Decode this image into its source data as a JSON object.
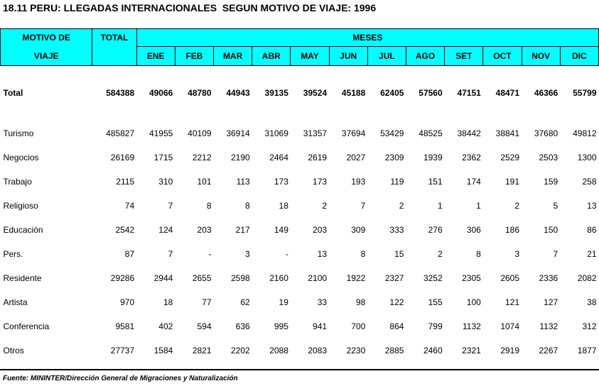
{
  "title": "18.11 PERU: LLEGADAS INTERNACIONALES  SEGUN MOTIVO DE VIAJE: 1996",
  "header": {
    "motivo_line1": "MOTIVO DE",
    "motivo_line2": "VIAJE",
    "total": "TOTAL",
    "meses": "MESES",
    "months": [
      "ENE",
      "FEB",
      "MAR",
      "ABR",
      "MAY",
      "JUN",
      "JUL",
      "AGO",
      "SET",
      "OCT",
      "NOV",
      "DIC"
    ]
  },
  "total_row": {
    "label": "Total",
    "values": [
      "584388",
      "49066",
      "48780",
      "44943",
      "39135",
      "39524",
      "45188",
      "62405",
      "57560",
      "47151",
      "48471",
      "46366",
      "55799"
    ]
  },
  "rows": [
    {
      "label": "Turismo",
      "values": [
        "485827",
        "41955",
        "40109",
        "36914",
        "31069",
        "31357",
        "37694",
        "53429",
        "48525",
        "38442",
        "38841",
        "37680",
        "49812"
      ]
    },
    {
      "label": "Negocios",
      "values": [
        "26169",
        "1715",
        "2212",
        "2190",
        "2464",
        "2619",
        "2027",
        "2309",
        "1939",
        "2362",
        "2529",
        "2503",
        "1300"
      ]
    },
    {
      "label": "Trabajo",
      "values": [
        "2115",
        "310",
        "101",
        "113",
        "173",
        "173",
        "193",
        "119",
        "151",
        "174",
        "191",
        "159",
        "258"
      ]
    },
    {
      "label": "Religioso",
      "values": [
        "74",
        "7",
        "8",
        "8",
        "18",
        "2",
        "7",
        "2",
        "1",
        "1",
        "2",
        "5",
        "13"
      ]
    },
    {
      "label": "Educación",
      "values": [
        "2542",
        "124",
        "203",
        "217",
        "149",
        "203",
        "309",
        "333",
        "276",
        "306",
        "186",
        "150",
        "86"
      ]
    },
    {
      "label": "Pers.",
      "values": [
        "87",
        "7",
        "-",
        "3",
        "-",
        "13",
        "8",
        "15",
        "2",
        "8",
        "3",
        "7",
        "21"
      ]
    },
    {
      "label": "Residente",
      "values": [
        "29286",
        "2944",
        "2655",
        "2598",
        "2160",
        "2100",
        "1922",
        "2327",
        "3252",
        "2305",
        "2605",
        "2336",
        "2082"
      ]
    },
    {
      "label": "Artista",
      "values": [
        "970",
        "18",
        "77",
        "62",
        "19",
        "33",
        "98",
        "122",
        "155",
        "100",
        "121",
        "127",
        "38"
      ]
    },
    {
      "label": "Conferencia",
      "values": [
        "9581",
        "402",
        "594",
        "636",
        "995",
        "941",
        "700",
        "864",
        "799",
        "1132",
        "1074",
        "1132",
        "312"
      ]
    },
    {
      "label": "Otros",
      "values": [
        "27737",
        "1584",
        "2821",
        "2202",
        "2088",
        "2083",
        "2230",
        "2885",
        "2460",
        "2321",
        "2919",
        "2267",
        "1877"
      ]
    }
  ],
  "source": "Fuente: MININTER/Dirección General de Migraciones y Naturalización"
}
